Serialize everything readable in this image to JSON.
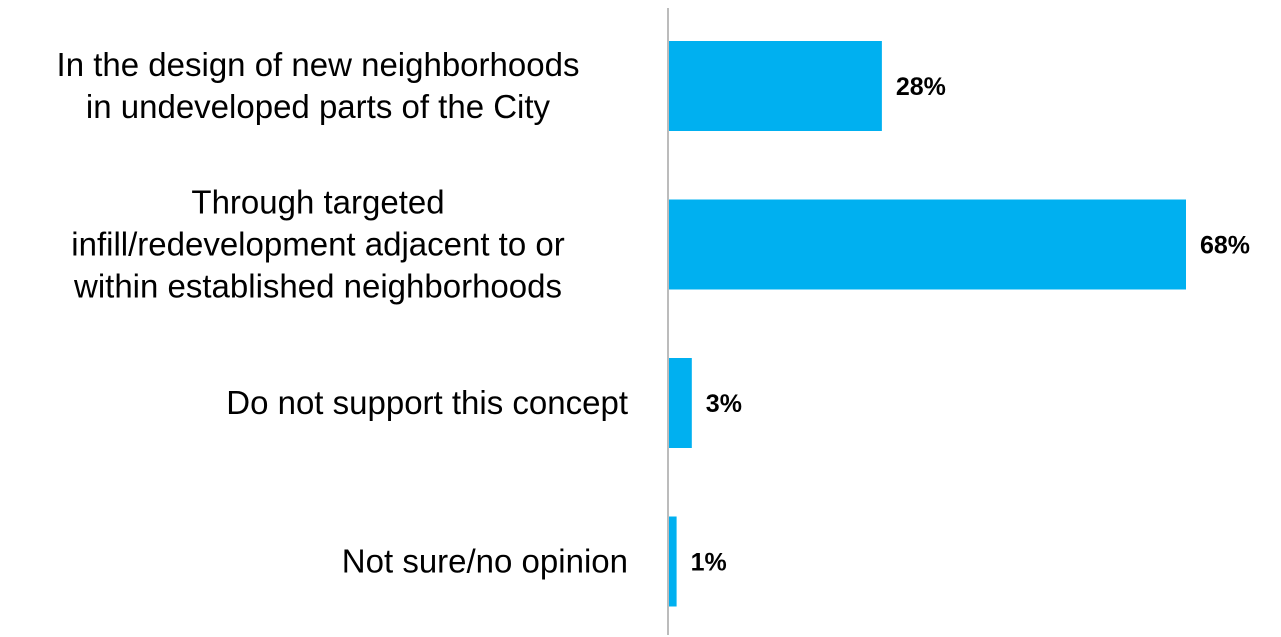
{
  "chart_data": {
    "type": "bar",
    "orientation": "horizontal",
    "categories": [
      [
        "In the design of new neighborhoods",
        "in undeveloped parts of the City"
      ],
      [
        "Through targeted",
        "infill/redevelopment adjacent to or",
        "within established neighborhoods"
      ],
      [
        "Do not support this concept"
      ],
      [
        "Not sure/no opinion"
      ]
    ],
    "values": [
      28,
      68,
      3,
      1
    ],
    "value_labels": [
      "28%",
      "68%",
      "3%",
      "1%"
    ],
    "xlim": [
      0,
      68
    ],
    "title": "",
    "xlabel": "",
    "ylabel": "",
    "grid": false,
    "legend": "none",
    "bar_color": "#00B0F0",
    "axis_color": "#A6A6A6"
  }
}
